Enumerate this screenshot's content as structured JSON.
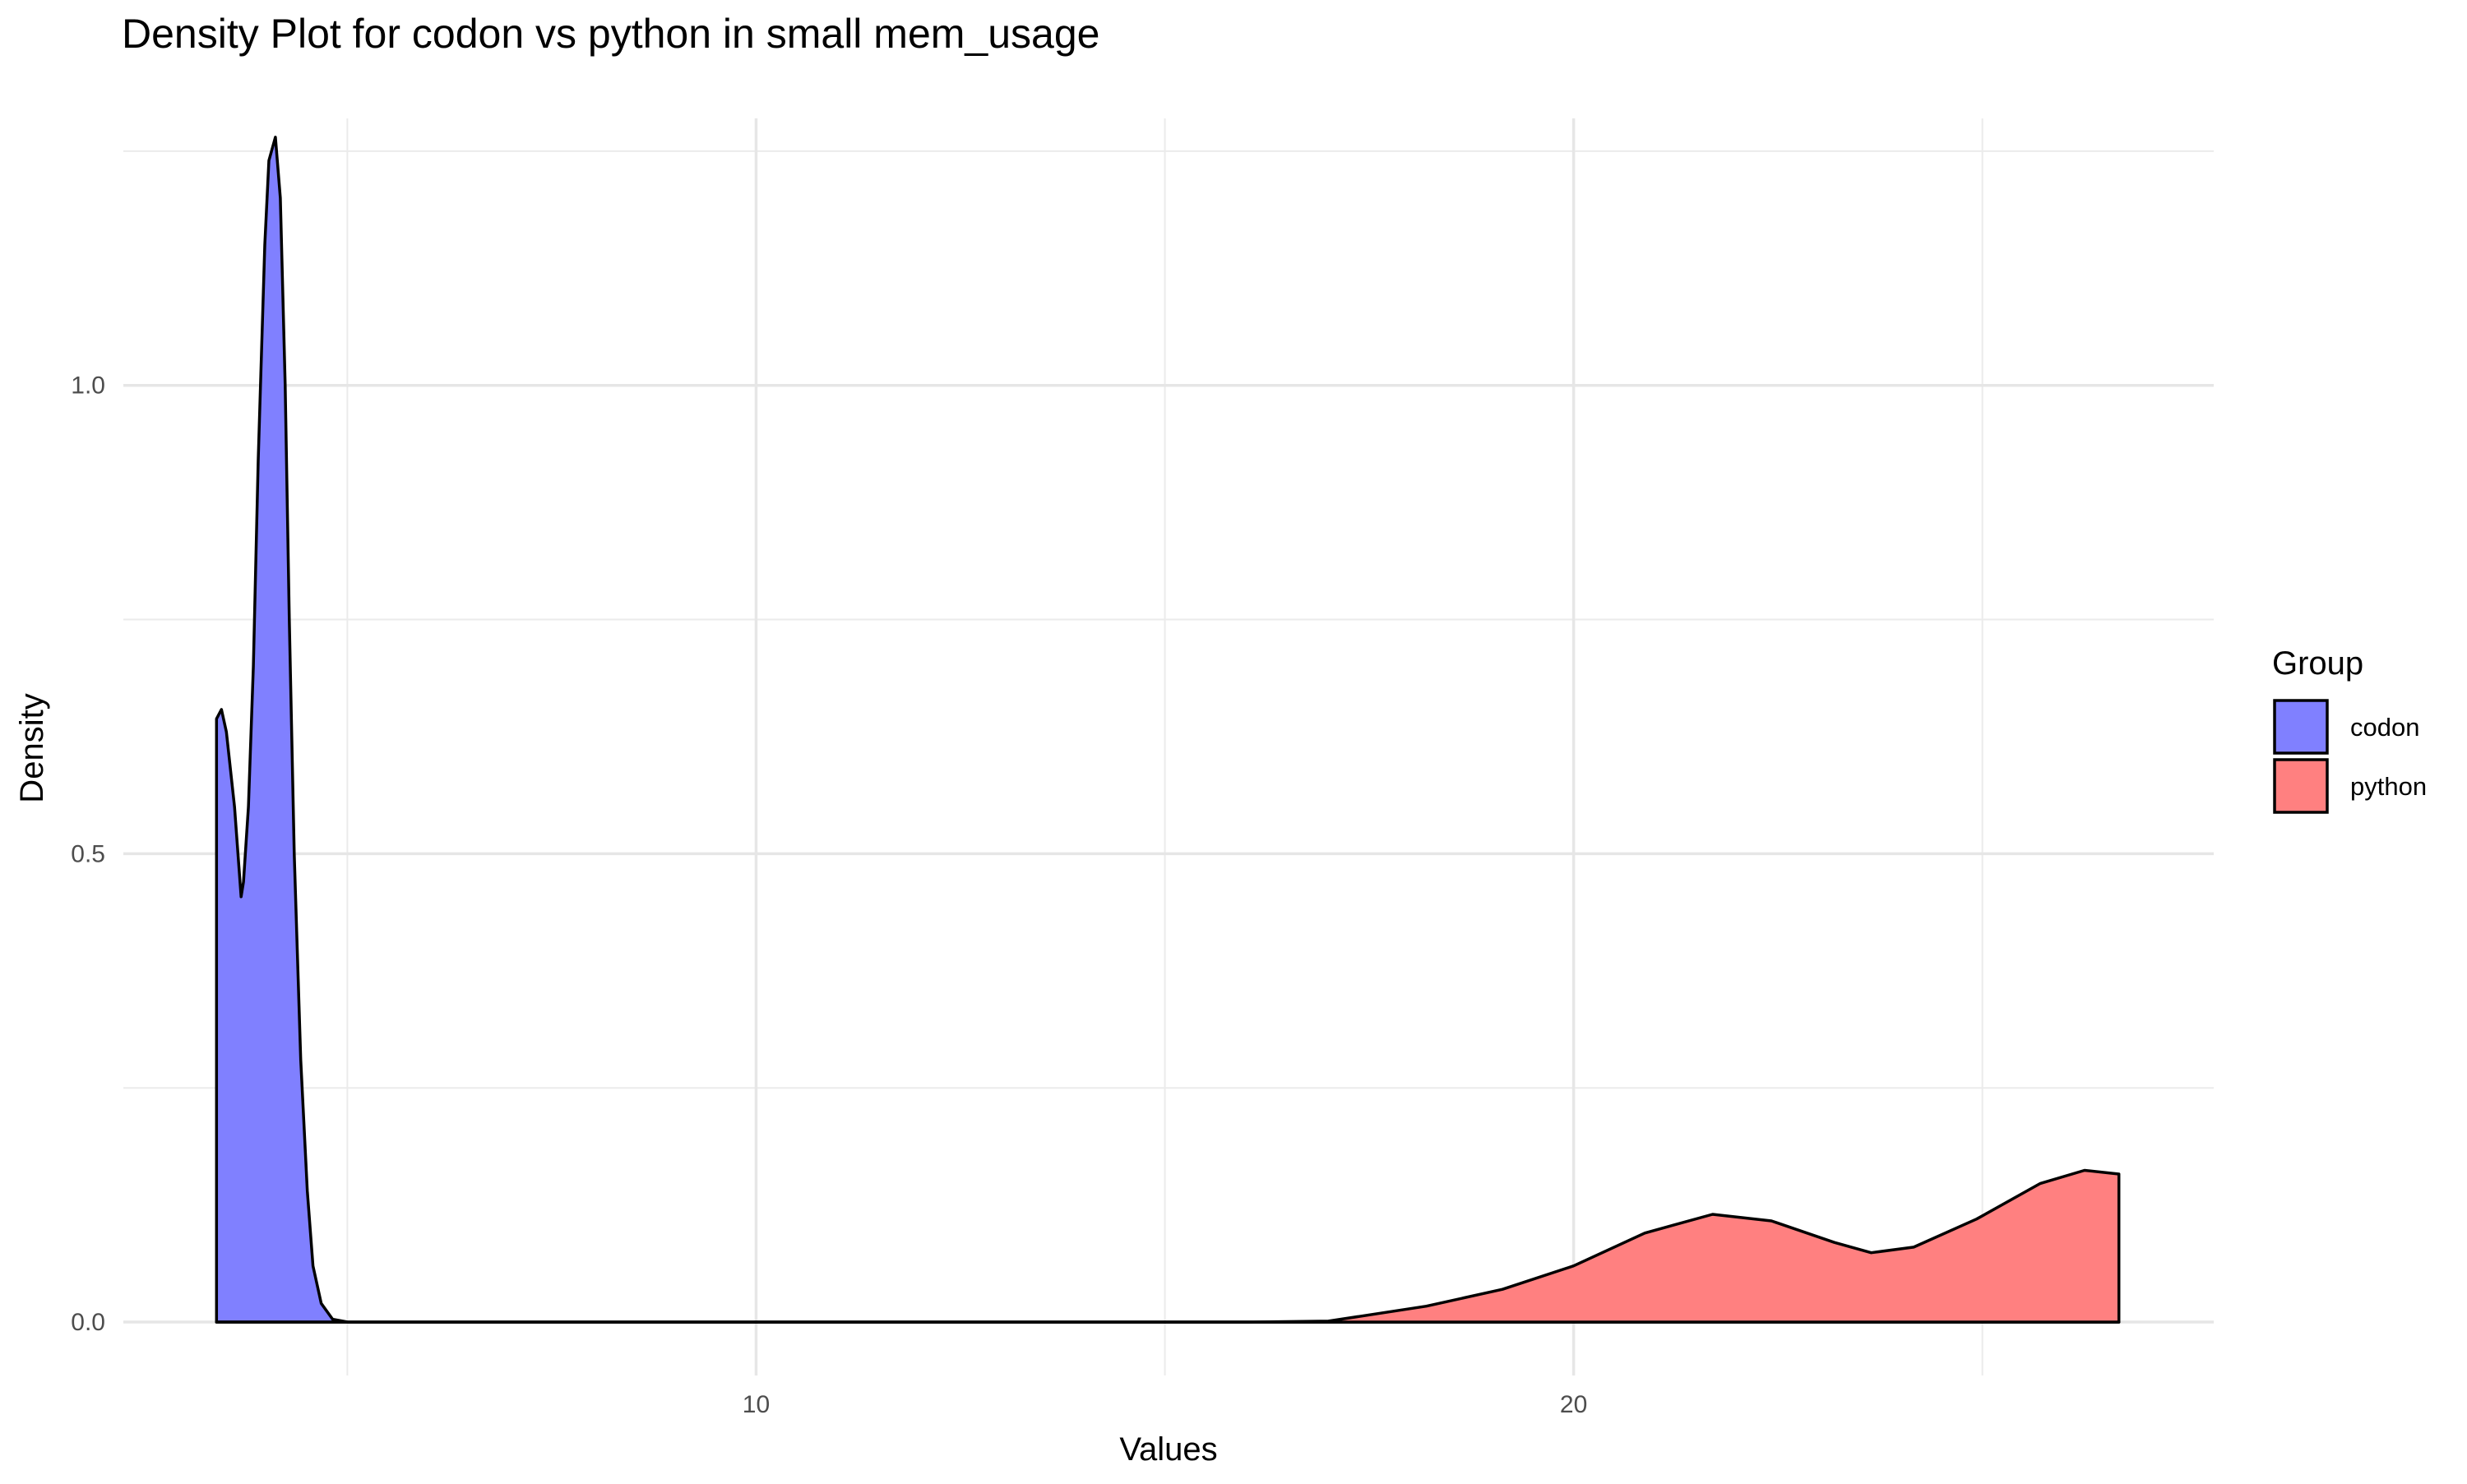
{
  "chart_data": {
    "type": "area",
    "title": "Density Plot for codon vs python in small mem_usage",
    "x_label": "Values",
    "y_label": "Density",
    "legend_title": "Group",
    "legend_position": "right",
    "xlim": [
      2.26,
      27.83
    ],
    "ylim": [
      -0.057,
      1.285
    ],
    "xticks": [
      10,
      20
    ],
    "x_minor_grid": [
      5,
      15,
      25
    ],
    "yticks": [
      {
        "value": 0,
        "label": "0.0"
      },
      0.5,
      {
        "value": 1,
        "label": "1.0"
      }
    ],
    "y_minor_grid": [
      0.25,
      0.75,
      1.25
    ],
    "grid": true,
    "series": [
      {
        "name": "codon",
        "color": "#8080ff",
        "x": [
          3.4,
          3.46,
          3.52,
          3.62,
          3.7,
          3.73,
          3.79,
          3.85,
          3.91,
          3.99,
          4.04,
          4.12,
          4.18,
          4.24,
          4.29,
          4.35,
          4.43,
          4.51,
          4.58,
          4.68,
          4.82,
          5.01,
          26.67
        ],
        "values": [
          0.644,
          0.654,
          0.63,
          0.55,
          0.454,
          0.47,
          0.55,
          0.7,
          0.92,
          1.15,
          1.24,
          1.265,
          1.2,
          1.0,
          0.75,
          0.5,
          0.28,
          0.14,
          0.06,
          0.02,
          0.003,
          0,
          0
        ]
      },
      {
        "name": "python",
        "color": "#ff8080",
        "x": [
          3.4,
          16.0,
          17.0,
          18.2,
          19.13,
          20.0,
          20.87,
          21.7,
          22.42,
          23.19,
          23.64,
          24.16,
          24.93,
          25.71,
          26.25,
          26.67
        ],
        "values": [
          0,
          0,
          0.001,
          0.017,
          0.035,
          0.06,
          0.095,
          0.115,
          0.108,
          0.085,
          0.074,
          0.08,
          0.11,
          0.148,
          0.162,
          0.158
        ]
      }
    ]
  }
}
